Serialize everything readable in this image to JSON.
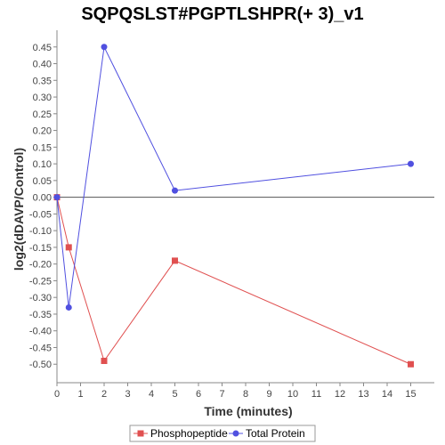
{
  "chart_data": {
    "type": "line",
    "title": "SQPQSLST#PGPTLSHPR(+ 3)_v1",
    "xlabel": "Time (minutes)",
    "ylabel": "log2(dDAVP/Control)",
    "xlim": [
      0,
      16
    ],
    "ylim": [
      -0.55,
      0.5
    ],
    "x_ticks": [
      0,
      1,
      2,
      3,
      4,
      5,
      6,
      7,
      8,
      9,
      10,
      11,
      12,
      13,
      14,
      15
    ],
    "y_ticks": [
      -0.5,
      -0.45,
      -0.4,
      -0.35,
      -0.3,
      -0.25,
      -0.2,
      -0.15,
      -0.1,
      -0.05,
      0.0,
      0.05,
      0.1,
      0.15,
      0.2,
      0.25,
      0.3,
      0.35,
      0.4,
      0.45
    ],
    "y_tick_labels": [
      "-0.50",
      "-0.45",
      "-0.40",
      "-0.35",
      "-0.30",
      "-0.25",
      "-0.20",
      "-0.15",
      "-0.10",
      "-0.05",
      "0.00",
      "0.05",
      "0.10",
      "0.15",
      "0.20",
      "0.25",
      "0.30",
      "0.35",
      "0.40",
      "0.45"
    ],
    "zero_line": true,
    "grid": false,
    "legend_position": "bottom-center",
    "series": [
      {
        "name": "Phosphopeptide",
        "color": "#e05050",
        "marker": "square",
        "x": [
          0,
          0.5,
          2,
          5,
          15
        ],
        "y": [
          0.0,
          -0.15,
          -0.49,
          -0.19,
          -0.5
        ]
      },
      {
        "name": "Total Protein",
        "color": "#5050e0",
        "marker": "circle",
        "x": [
          0,
          0.5,
          2,
          5,
          15
        ],
        "y": [
          0.0,
          -0.33,
          0.45,
          0.02,
          0.1
        ]
      }
    ]
  }
}
